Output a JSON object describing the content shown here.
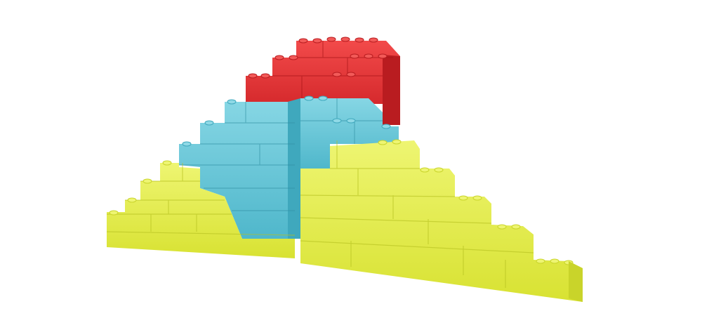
{
  "scene": {
    "subject": "pyramid-of-toy-bricks",
    "colors": {
      "background": "#ffffff",
      "yellow": "#e4ee3e",
      "yellow_dark": "#c9d42a",
      "yellow_light": "#eef572",
      "blue": "#5cc3d6",
      "blue_dark": "#3fa8bd",
      "blue_light": "#8fd9e6",
      "red": "#e5292d",
      "red_dark": "#b91c20",
      "red_light": "#f25a58"
    }
  }
}
